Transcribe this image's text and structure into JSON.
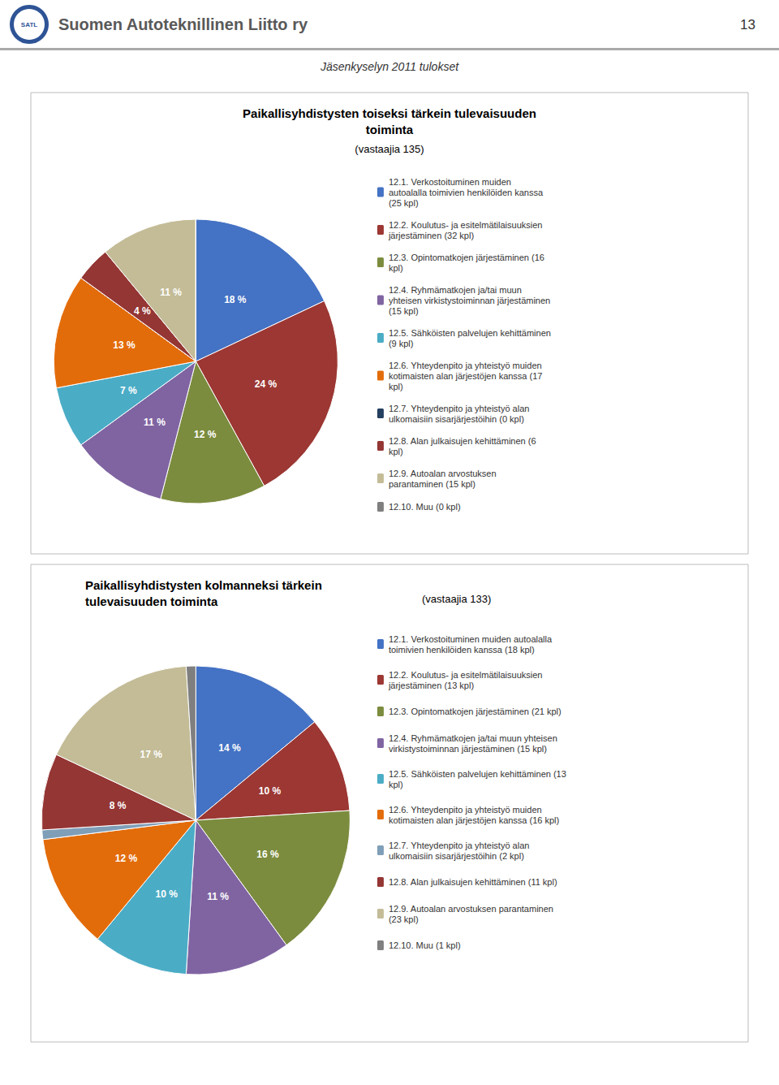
{
  "page": {
    "logo": "SATL",
    "header": "Suomen Autoteknillinen Liitto ry",
    "page_number": "13",
    "title": "Jäsenkyselyn 2011 tulokset"
  },
  "chart_data": [
    {
      "type": "pie",
      "title": "Paikallisyhdistysten toiseksi tärkein tulevaisuuden\ntoiminta",
      "subtitle": "(vastaajia 135)",
      "categories": [
        "12.1. Verkostoituminen muiden\nautoalalla toimivien henkilöiden kanssa\n(25 kpl)",
        "12.2. Koulutus- ja esitelmätilaisuuksien\njärjestäminen (32 kpl)",
        "12.3. Opintomatkojen järjestäminen (16\nkpl)",
        "12.4. Ryhmämatkojen ja/tai muun\nyhteisen virkistystoiminnan järjestäminen\n(15 kpl)",
        "12.5. Sähköisten palvelujen kehittäminen\n(9 kpl)",
        "12.6. Yhteydenpito ja yhteistyö muiden\nkotimaisten alan järjestöjen kanssa (17\nkpl)",
        "12.7. Yhteydenpito ja yhteistyö alan\nulkomaisiin sisarjärjestöihin (0 kpl)",
        "12.8. Alan julkaisujen kehittäminen (6\nkpl)",
        "12.9. Autoalan arvostuksen\nparantaminen (15 kpl)",
        "12.10. Muu (0 kpl)"
      ],
      "values": [
        18,
        24,
        12,
        11,
        7,
        13,
        0,
        4,
        11,
        0
      ],
      "value_labels": [
        "18 %",
        "24 %",
        "12 %",
        "11 %",
        "7 %",
        "13 %",
        null,
        "4 %",
        "11 %",
        null
      ],
      "colors": [
        "#4472C4",
        "#9C3733",
        "#7B8C3E",
        "#8064A2",
        "#4BACC6",
        "#E36C0A",
        "#243F60",
        "#943634",
        "#C3BC97",
        "#7F7F7F"
      ],
      "legend": "right",
      "data_labels": true
    },
    {
      "type": "pie",
      "title": "Paikallisyhdistysten kolmanneksi tärkein\ntulevaisuuden toiminta",
      "subtitle": "(vastaajia 133)",
      "categories": [
        "12.1. Verkostoituminen muiden autoalalla\ntoimivien henkilöiden kanssa (18 kpl)",
        "12.2. Koulutus- ja esitelmätilaisuuksien\njärjestäminen (13 kpl)",
        "12.3. Opintomatkojen järjestäminen (21 kpl)",
        "12.4. Ryhmämatkojen ja/tai muun yhteisen\nvirkistystoiminnan järjestäminen (15 kpl)",
        "12.5. Sähköisten palvelujen kehittäminen (13\nkpl)",
        "12.6. Yhteydenpito ja yhteistyö muiden\nkotimaisten alan järjestöjen kanssa (16 kpl)",
        "12.7. Yhteydenpito ja yhteistyö alan\nulkomaisiin sisarjärjestöihin (2 kpl)",
        "12.8. Alan julkaisujen kehittäminen (11 kpl)",
        "12.9. Autoalan arvostuksen parantaminen\n(23 kpl)",
        "12.10. Muu (1 kpl)"
      ],
      "values": [
        14,
        10,
        16,
        11,
        10,
        12,
        1,
        8,
        17,
        1
      ],
      "value_labels": [
        "14 %",
        "10 %",
        "16 %",
        "11 %",
        "10 %",
        "12 %",
        null,
        "8 %",
        "17 %",
        null
      ],
      "colors": [
        "#4472C4",
        "#9C3733",
        "#7B8C3E",
        "#8064A2",
        "#4BACC6",
        "#E36C0A",
        "#7F9EB8",
        "#943634",
        "#C3BC97",
        "#7F7F7F"
      ],
      "legend": "right",
      "data_labels": true
    }
  ]
}
